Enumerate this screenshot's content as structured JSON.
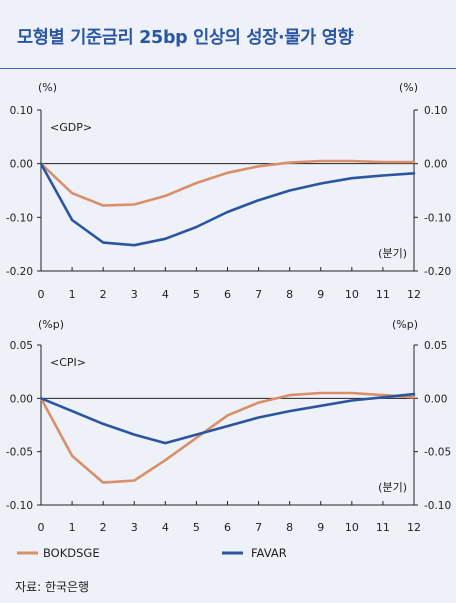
{
  "title": "모형별 기준금리 25bp 인상의 성장·물가 영향",
  "source": "자료: 한국은행",
  "legend": [
    {
      "name": "BOKDSGE",
      "color": "#d9906a"
    },
    {
      "name": "FAVAR",
      "color": "#2c55a0"
    }
  ],
  "chart_data": [
    {
      "type": "line",
      "panel": "<GDP>",
      "y_unit_left": "(%)",
      "y_unit_right": "(%)",
      "xlabel": "(분기)",
      "x": [
        0,
        1,
        2,
        3,
        4,
        5,
        6,
        7,
        8,
        9,
        10,
        11,
        12
      ],
      "ylim": [
        -0.2,
        0.1
      ],
      "yticks": [
        "0.10",
        "0.00",
        "-0.10",
        "-0.20"
      ],
      "series": [
        {
          "name": "BOKDSGE",
          "color": "#d9906a",
          "values": [
            0.0,
            -0.055,
            -0.078,
            -0.076,
            -0.06,
            -0.036,
            -0.017,
            -0.005,
            0.002,
            0.005,
            0.005,
            0.003,
            0.003
          ]
        },
        {
          "name": "FAVAR",
          "color": "#2c55a0",
          "values": [
            0.0,
            -0.105,
            -0.147,
            -0.152,
            -0.14,
            -0.118,
            -0.09,
            -0.068,
            -0.05,
            -0.037,
            -0.027,
            -0.022,
            -0.018
          ]
        }
      ]
    },
    {
      "type": "line",
      "panel": "<CPI>",
      "y_unit_left": "(%p)",
      "y_unit_right": "(%p)",
      "xlabel": "(분기)",
      "x": [
        0,
        1,
        2,
        3,
        4,
        5,
        6,
        7,
        8,
        9,
        10,
        11,
        12
      ],
      "ylim": [
        -0.1,
        0.05
      ],
      "yticks": [
        "0.05",
        "0.00",
        "-0.05",
        "-0.10"
      ],
      "series": [
        {
          "name": "BOKDSGE",
          "color": "#d9906a",
          "values": [
            0.0,
            -0.054,
            -0.079,
            -0.077,
            -0.058,
            -0.037,
            -0.016,
            -0.004,
            0.003,
            0.005,
            0.005,
            0.003,
            0.001
          ]
        },
        {
          "name": "FAVAR",
          "color": "#2c55a0",
          "values": [
            0.0,
            -0.012,
            -0.024,
            -0.034,
            -0.042,
            -0.034,
            -0.026,
            -0.018,
            -0.012,
            -0.007,
            -0.002,
            0.001,
            0.004
          ]
        }
      ]
    }
  ]
}
